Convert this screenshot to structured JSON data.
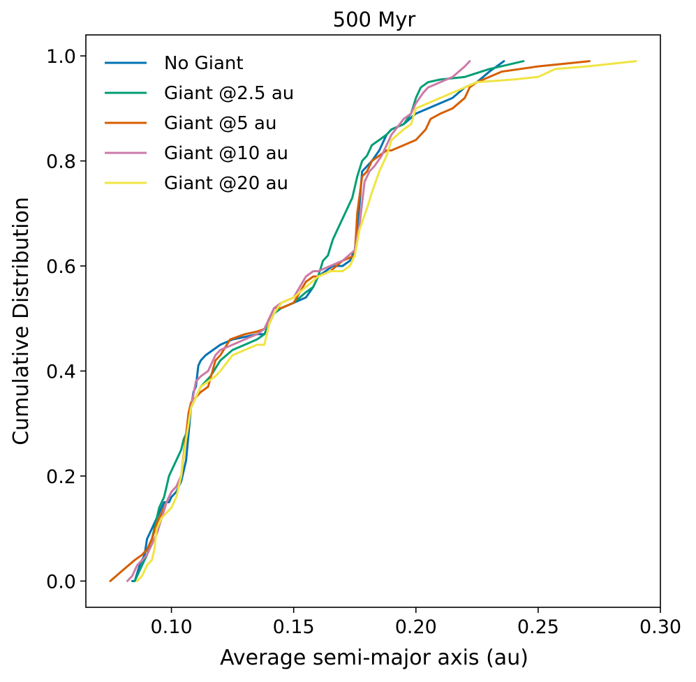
{
  "chart_data": {
    "type": "line",
    "title": "500 Myr",
    "xlabel": "Average semi-major axis (au)",
    "ylabel": "Cumulative Distribution",
    "xlim": [
      0.065,
      0.3
    ],
    "ylim": [
      -0.05,
      1.04
    ],
    "xticks": [
      0.1,
      0.15,
      0.2,
      0.25,
      0.3
    ],
    "xtick_labels": [
      "0.10",
      "0.15",
      "0.20",
      "0.25",
      "0.30"
    ],
    "yticks": [
      0.0,
      0.2,
      0.4,
      0.6,
      0.8,
      1.0
    ],
    "ytick_labels": [
      "0.0",
      "0.2",
      "0.4",
      "0.6",
      "0.8",
      "1.0"
    ],
    "grid": false,
    "legend_position": "top-left",
    "series": [
      {
        "name": "No Giant",
        "color": "#0072b2",
        "x": [
          0.084,
          0.085,
          0.087,
          0.089,
          0.09,
          0.091,
          0.092,
          0.094,
          0.096,
          0.097,
          0.099,
          0.1,
          0.102,
          0.104,
          0.106,
          0.107,
          0.108,
          0.109,
          0.11,
          0.111,
          0.112,
          0.114,
          0.117,
          0.12,
          0.125,
          0.13,
          0.135,
          0.138,
          0.14,
          0.142,
          0.145,
          0.15,
          0.155,
          0.158,
          0.16,
          0.163,
          0.166,
          0.17,
          0.173,
          0.175,
          0.177,
          0.178,
          0.18,
          0.182,
          0.185,
          0.188,
          0.19,
          0.195,
          0.2,
          0.205,
          0.21,
          0.215,
          0.22,
          0.225,
          0.23,
          0.236
        ],
        "y": [
          0.0,
          0.0,
          0.03,
          0.05,
          0.08,
          0.09,
          0.1,
          0.12,
          0.14,
          0.15,
          0.15,
          0.16,
          0.17,
          0.19,
          0.23,
          0.28,
          0.33,
          0.36,
          0.37,
          0.41,
          0.42,
          0.43,
          0.44,
          0.45,
          0.46,
          0.465,
          0.47,
          0.47,
          0.49,
          0.51,
          0.52,
          0.53,
          0.54,
          0.56,
          0.58,
          0.59,
          0.6,
          0.6,
          0.61,
          0.63,
          0.72,
          0.78,
          0.79,
          0.8,
          0.82,
          0.85,
          0.86,
          0.87,
          0.89,
          0.9,
          0.91,
          0.92,
          0.94,
          0.95,
          0.97,
          0.99
        ]
      },
      {
        "name": "Giant @2.5 au",
        "color": "#009e73",
        "x": [
          0.085,
          0.087,
          0.088,
          0.09,
          0.091,
          0.092,
          0.093,
          0.094,
          0.095,
          0.096,
          0.097,
          0.098,
          0.099,
          0.1,
          0.102,
          0.104,
          0.105,
          0.106,
          0.107,
          0.108,
          0.11,
          0.112,
          0.114,
          0.116,
          0.12,
          0.125,
          0.13,
          0.135,
          0.138,
          0.14,
          0.142,
          0.145,
          0.15,
          0.155,
          0.158,
          0.16,
          0.162,
          0.164,
          0.166,
          0.168,
          0.17,
          0.172,
          0.174,
          0.176,
          0.178,
          0.18,
          0.182,
          0.185,
          0.188,
          0.19,
          0.195,
          0.198,
          0.2,
          0.202,
          0.205,
          0.21,
          0.22,
          0.23,
          0.244
        ],
        "y": [
          0.0,
          0.02,
          0.03,
          0.05,
          0.07,
          0.08,
          0.1,
          0.12,
          0.14,
          0.15,
          0.16,
          0.18,
          0.2,
          0.21,
          0.23,
          0.25,
          0.27,
          0.28,
          0.3,
          0.33,
          0.35,
          0.37,
          0.38,
          0.39,
          0.42,
          0.44,
          0.45,
          0.46,
          0.47,
          0.49,
          0.51,
          0.52,
          0.53,
          0.55,
          0.56,
          0.58,
          0.61,
          0.62,
          0.65,
          0.67,
          0.69,
          0.71,
          0.73,
          0.77,
          0.8,
          0.81,
          0.83,
          0.84,
          0.85,
          0.86,
          0.87,
          0.89,
          0.92,
          0.94,
          0.95,
          0.955,
          0.96,
          0.975,
          0.99
        ]
      },
      {
        "name": "Giant @5 au",
        "color": "#d55e00",
        "x": [
          0.075,
          0.08,
          0.085,
          0.088,
          0.09,
          0.092,
          0.094,
          0.096,
          0.098,
          0.1,
          0.102,
          0.104,
          0.105,
          0.106,
          0.107,
          0.108,
          0.11,
          0.112,
          0.115,
          0.118,
          0.12,
          0.124,
          0.13,
          0.135,
          0.138,
          0.14,
          0.142,
          0.145,
          0.15,
          0.155,
          0.158,
          0.16,
          0.165,
          0.17,
          0.175,
          0.176,
          0.178,
          0.18,
          0.182,
          0.185,
          0.188,
          0.19,
          0.195,
          0.2,
          0.204,
          0.206,
          0.21,
          0.215,
          0.22,
          0.222,
          0.225,
          0.235,
          0.25,
          0.271
        ],
        "y": [
          0.0,
          0.02,
          0.04,
          0.05,
          0.06,
          0.08,
          0.11,
          0.13,
          0.15,
          0.17,
          0.18,
          0.2,
          0.24,
          0.28,
          0.32,
          0.34,
          0.35,
          0.36,
          0.37,
          0.42,
          0.43,
          0.46,
          0.47,
          0.475,
          0.48,
          0.5,
          0.52,
          0.52,
          0.53,
          0.57,
          0.58,
          0.58,
          0.59,
          0.61,
          0.62,
          0.7,
          0.77,
          0.78,
          0.8,
          0.81,
          0.82,
          0.82,
          0.83,
          0.84,
          0.86,
          0.88,
          0.89,
          0.9,
          0.92,
          0.94,
          0.95,
          0.97,
          0.98,
          0.99
        ]
      },
      {
        "name": "Giant @10 au",
        "color": "#cc79a7",
        "x": [
          0.082,
          0.084,
          0.086,
          0.088,
          0.09,
          0.092,
          0.094,
          0.096,
          0.098,
          0.1,
          0.102,
          0.104,
          0.106,
          0.108,
          0.11,
          0.112,
          0.115,
          0.118,
          0.12,
          0.125,
          0.13,
          0.135,
          0.138,
          0.14,
          0.142,
          0.145,
          0.15,
          0.155,
          0.158,
          0.16,
          0.165,
          0.17,
          0.175,
          0.177,
          0.179,
          0.181,
          0.183,
          0.186,
          0.19,
          0.195,
          0.198,
          0.2,
          0.203,
          0.205,
          0.21,
          0.215,
          0.22,
          0.222
        ],
        "y": [
          0.0,
          0.01,
          0.03,
          0.04,
          0.05,
          0.07,
          0.09,
          0.12,
          0.15,
          0.17,
          0.18,
          0.2,
          0.27,
          0.33,
          0.38,
          0.39,
          0.4,
          0.43,
          0.44,
          0.45,
          0.46,
          0.47,
          0.48,
          0.5,
          0.52,
          0.53,
          0.54,
          0.58,
          0.59,
          0.59,
          0.6,
          0.61,
          0.63,
          0.68,
          0.76,
          0.78,
          0.79,
          0.81,
          0.85,
          0.88,
          0.89,
          0.91,
          0.93,
          0.94,
          0.95,
          0.96,
          0.98,
          0.99
        ]
      },
      {
        "name": "Giant @20 au",
        "color": "#f0e442",
        "x": [
          0.086,
          0.088,
          0.089,
          0.09,
          0.092,
          0.093,
          0.094,
          0.096,
          0.098,
          0.1,
          0.102,
          0.104,
          0.106,
          0.108,
          0.11,
          0.112,
          0.115,
          0.118,
          0.12,
          0.125,
          0.13,
          0.135,
          0.138,
          0.14,
          0.142,
          0.145,
          0.15,
          0.155,
          0.16,
          0.165,
          0.17,
          0.173,
          0.175,
          0.177,
          0.18,
          0.182,
          0.185,
          0.188,
          0.19,
          0.195,
          0.198,
          0.2,
          0.205,
          0.21,
          0.215,
          0.22,
          0.225,
          0.24,
          0.25,
          0.257,
          0.27,
          0.29
        ],
        "y": [
          0.0,
          0.01,
          0.02,
          0.03,
          0.04,
          0.06,
          0.1,
          0.12,
          0.13,
          0.14,
          0.16,
          0.2,
          0.27,
          0.33,
          0.35,
          0.37,
          0.38,
          0.39,
          0.4,
          0.43,
          0.44,
          0.45,
          0.45,
          0.49,
          0.51,
          0.53,
          0.54,
          0.56,
          0.58,
          0.59,
          0.59,
          0.6,
          0.62,
          0.67,
          0.71,
          0.74,
          0.78,
          0.81,
          0.84,
          0.86,
          0.87,
          0.9,
          0.91,
          0.92,
          0.93,
          0.94,
          0.95,
          0.955,
          0.96,
          0.975,
          0.98,
          0.99
        ]
      }
    ]
  }
}
